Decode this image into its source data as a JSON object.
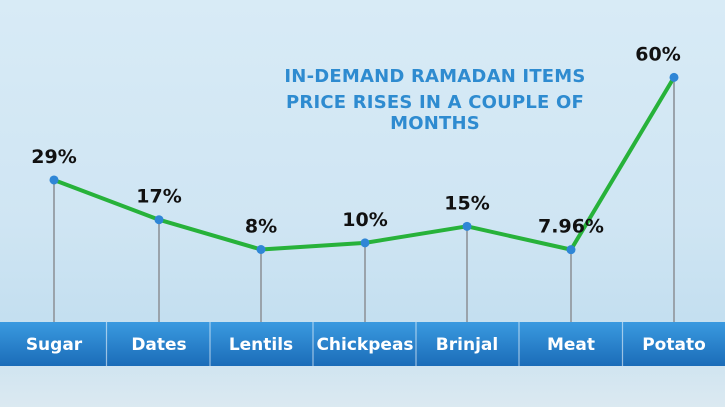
{
  "colors": {
    "title": "#2e8bd0",
    "line": "#27b23a",
    "point": "#2f86d6",
    "stem": "#9aa3ab",
    "band_top": "#3a9ae0",
    "band_bottom": "#1b6cb8"
  },
  "chart_data": {
    "type": "line",
    "title_lines": [
      "IN-DEMAND RAMADAN ITEMS",
      "PRICE RISES IN A COUPLE OF MONTHS"
    ],
    "categories": [
      "Sugar",
      "Dates",
      "Lentils",
      "Chickpeas",
      "Brinjal",
      "Meat",
      "Potato"
    ],
    "values": [
      29,
      17,
      8,
      10,
      15,
      7.96,
      60
    ],
    "value_labels": [
      "29%",
      "17%",
      "8%",
      "10%",
      "15%",
      "7.96%",
      "60%"
    ],
    "ylim": [
      0,
      60
    ],
    "grid": false,
    "legend": "none"
  }
}
